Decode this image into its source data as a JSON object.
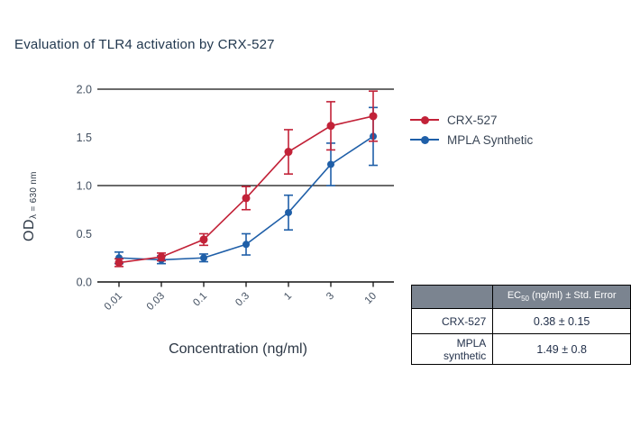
{
  "title": "Evaluation of TLR4 activation by CRX-527",
  "legend": {
    "items": [
      {
        "label": "CRX-527",
        "color": "#c22238"
      },
      {
        "label": "MPLA Synthetic",
        "color": "#1f5fa8"
      }
    ]
  },
  "chart_data": {
    "type": "line",
    "x_scale": "log",
    "x": [
      0.01,
      0.03,
      0.1,
      0.3,
      1,
      3,
      10
    ],
    "x_tick_labels": [
      "0.01",
      "0.03",
      "0.1",
      "0.3",
      "1",
      "3",
      "10"
    ],
    "xlabel": "Concentration (ng/ml)",
    "ylabel_main": "OD",
    "ylabel_sub": "λ = 630 nm",
    "ylim": [
      0,
      2
    ],
    "y_ticks": [
      0,
      0.5,
      1,
      1.5,
      2
    ],
    "gridline_values": [
      1,
      2
    ],
    "series": [
      {
        "name": "CRX-527",
        "color": "#c22238",
        "marker_radius": 4.5,
        "values": [
          0.2,
          0.26,
          0.44,
          0.87,
          1.35,
          1.62,
          1.72
        ],
        "errors": [
          0.04,
          0.04,
          0.06,
          0.12,
          0.23,
          0.25,
          0.26
        ]
      },
      {
        "name": "MPLA Synthetic",
        "color": "#1f5fa8",
        "marker_radius": 4,
        "values": [
          0.25,
          0.23,
          0.25,
          0.39,
          0.72,
          1.22,
          1.51
        ],
        "errors": [
          0.06,
          0.04,
          0.04,
          0.11,
          0.18,
          0.22,
          0.3
        ]
      }
    ]
  },
  "table": {
    "header": {
      "col2_prefix": "EC",
      "col2_sub": "50",
      "col2_suffix": " (ng/ml) ± Std. Error"
    },
    "rows": [
      {
        "label": "CRX-527",
        "value": "0.38 ± 0.15"
      },
      {
        "label": "MPLA synthetic",
        "value": "1.49 ± 0.8"
      }
    ]
  },
  "colors": {
    "axis": "#111111",
    "tick_text": "#435061",
    "title_text": "#22384f",
    "table_header_bg": "#7b8490"
  }
}
